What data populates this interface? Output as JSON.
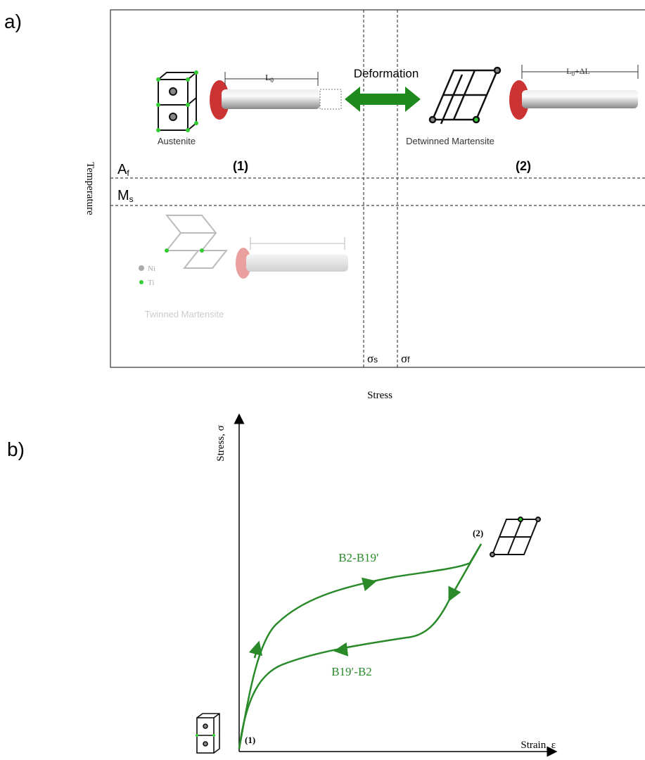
{
  "panel_a": {
    "label": "a)",
    "y_axis_label": "Temperature",
    "x_axis_label": "Stress",
    "austenite": "Austenite",
    "length_start": {
      "main": "L",
      "sub": "0"
    },
    "deformation": "Deformation",
    "detwinned": "Detwinned Martensite",
    "length_end": {
      "main": "L",
      "sub": "0",
      "rest": "+ΔL"
    },
    "state_1": "(1)",
    "state_2": "(2)",
    "af": {
      "main": "A",
      "sub": "f"
    },
    "ms": {
      "main": "M",
      "sub": "s"
    },
    "legend_ni": "Ni",
    "legend_ti": "Ti",
    "twinned": "Twinned Martensite",
    "sigma_s": {
      "main": "σ",
      "sub": "s"
    },
    "sigma_f": {
      "main": "σ",
      "sub": "f"
    }
  },
  "panel_b": {
    "label": "b)",
    "y_axis_label": "Stress, σ",
    "x_axis_label": "Strain, ε",
    "loading": "B2-B19′",
    "unloading": "B19′-B2",
    "state_1": "(1)",
    "state_2": "(2)"
  }
}
